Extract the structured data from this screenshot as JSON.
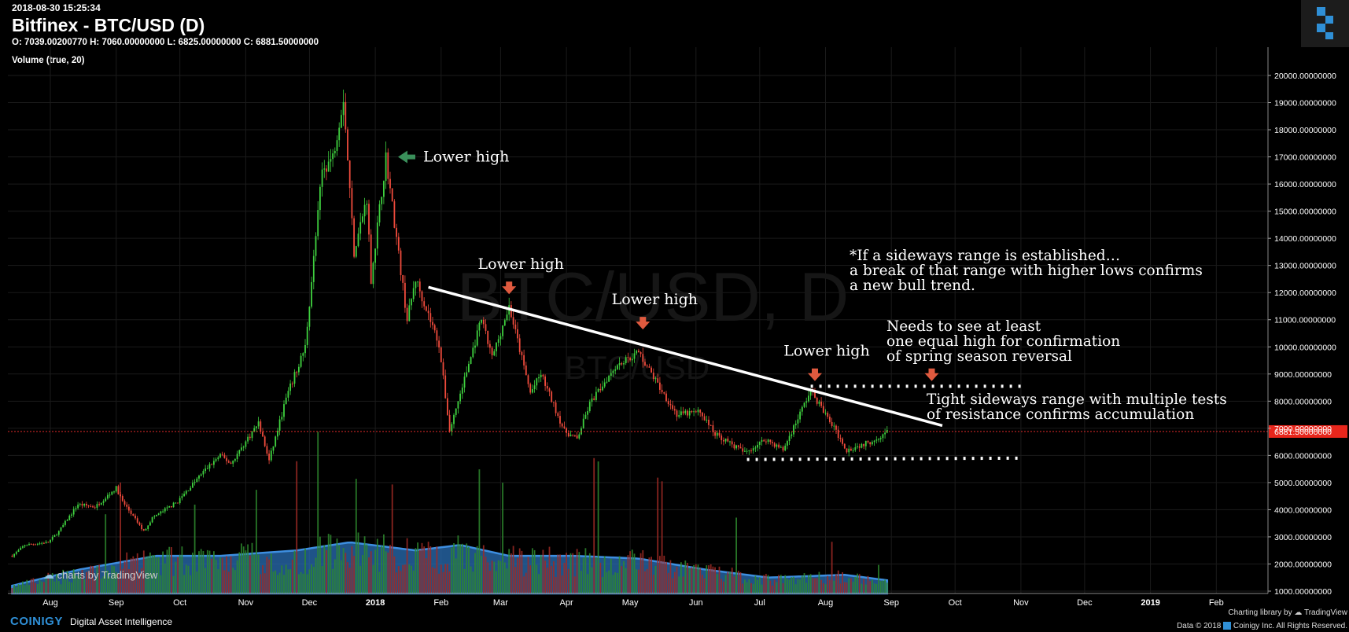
{
  "header": {
    "timestamp": "2018-08-30 15:25:34",
    "title": "Bitfinex - BTC/USD (D)",
    "ohlc": "O: 7039.00200770 H: 7060.00000000 L: 6825.00000000 C: 6881.50000000",
    "volume_label": "Volume (true, 20)"
  },
  "watermark": {
    "big": "BTC/USD, D",
    "small": "BTC/USD"
  },
  "footer": {
    "brand": "COINIGY",
    "tagline": "Digital Asset Intelligence",
    "charting": "Charting library by",
    "tv": "TradingView",
    "copyright": "Data © 2018",
    "copyright2": "Coinigy Inc. All Rights Reserved.",
    "charts_by": "charts by TradingView"
  },
  "colors": {
    "up": "#3fd13f",
    "down": "#ef4b3c",
    "volume_area": "#2a6fb5",
    "price_line": "#ff3030",
    "annotation_arrow": "#e05a3f",
    "green_arrow": "#3a8f5a"
  },
  "chart_data": {
    "type": "candlestick",
    "ylim": [
      1000,
      20000
    ],
    "current_price": 6881.5,
    "current_price_label": "6881.50000000",
    "ytick_values": [
      1000,
      2000,
      3000,
      4000,
      5000,
      6000,
      7000,
      8000,
      9000,
      10000,
      11000,
      12000,
      13000,
      14000,
      15000,
      16000,
      17000,
      18000,
      19000,
      20000
    ],
    "ytick_labels": [
      "1000.00000000",
      "2000.00000000",
      "3000.00000000",
      "4000.00000000",
      "5000.00000000",
      "6000.00000000",
      "7000.00000000",
      "8000.00000000",
      "9000.00000000",
      "10000.00000000",
      "11000.00000000",
      "12000.00000000",
      "13000.00000000",
      "14000.00000000",
      "15000.00000000",
      "16000.00000000",
      "17000.00000000",
      "18000.00000000",
      "19000.00000000",
      "20000.00000000"
    ],
    "xticks": [
      {
        "label": "Aug",
        "date": "2017-08-01",
        "bold": false
      },
      {
        "label": "Sep",
        "date": "2017-09-01",
        "bold": false
      },
      {
        "label": "Oct",
        "date": "2017-10-01",
        "bold": false
      },
      {
        "label": "Nov",
        "date": "2017-11-01",
        "bold": false
      },
      {
        "label": "Dec",
        "date": "2017-12-01",
        "bold": false
      },
      {
        "label": "2018",
        "date": "2018-01-01",
        "bold": true
      },
      {
        "label": "Feb",
        "date": "2018-02-01",
        "bold": false
      },
      {
        "label": "Mar",
        "date": "2018-03-01",
        "bold": false
      },
      {
        "label": "Apr",
        "date": "2018-04-01",
        "bold": false
      },
      {
        "label": "May",
        "date": "2018-05-01",
        "bold": false
      },
      {
        "label": "Jun",
        "date": "2018-06-01",
        "bold": false
      },
      {
        "label": "Jul",
        "date": "2018-07-01",
        "bold": false
      },
      {
        "label": "Aug",
        "date": "2018-08-01",
        "bold": false
      },
      {
        "label": "Sep",
        "date": "2018-09-01",
        "bold": false
      },
      {
        "label": "Oct",
        "date": "2018-10-01",
        "bold": false
      },
      {
        "label": "Nov",
        "date": "2018-11-01",
        "bold": false
      },
      {
        "label": "Dec",
        "date": "2018-12-01",
        "bold": false
      },
      {
        "label": "2019",
        "date": "2019-01-01",
        "bold": true
      },
      {
        "label": "Feb",
        "date": "2019-02-01",
        "bold": false
      }
    ],
    "price_path": [
      [
        "2017-07-14",
        2300
      ],
      [
        "2017-07-20",
        2700
      ],
      [
        "2017-07-31",
        2800
      ],
      [
        "2017-08-05",
        3200
      ],
      [
        "2017-08-14",
        4200
      ],
      [
        "2017-08-22",
        4100
      ],
      [
        "2017-09-01",
        4800
      ],
      [
        "2017-09-04",
        4300
      ],
      [
        "2017-09-14",
        3200
      ],
      [
        "2017-09-18",
        3700
      ],
      [
        "2017-09-30",
        4300
      ],
      [
        "2017-10-12",
        5400
      ],
      [
        "2017-10-20",
        6000
      ],
      [
        "2017-10-25",
        5700
      ],
      [
        "2017-11-07",
        7200
      ],
      [
        "2017-11-12",
        5800
      ],
      [
        "2017-11-20",
        8100
      ],
      [
        "2017-11-29",
        10000
      ],
      [
        "2017-12-07",
        16500
      ],
      [
        "2017-12-12",
        17000
      ],
      [
        "2017-12-17",
        19200
      ],
      [
        "2017-12-22",
        13500
      ],
      [
        "2017-12-28",
        15500
      ],
      [
        "2017-12-30",
        12500
      ],
      [
        "2018-01-06",
        17000
      ],
      [
        "2018-01-16",
        11000
      ],
      [
        "2018-01-20",
        12500
      ],
      [
        "2018-01-31",
        10100
      ],
      [
        "2018-02-05",
        6900
      ],
      [
        "2018-02-09",
        8000
      ],
      [
        "2018-02-20",
        11000
      ],
      [
        "2018-02-25",
        9600
      ],
      [
        "2018-03-05",
        11500
      ],
      [
        "2018-03-15",
        8300
      ],
      [
        "2018-03-20",
        9000
      ],
      [
        "2018-03-31",
        6900
      ],
      [
        "2018-04-06",
        6600
      ],
      [
        "2018-04-12",
        7900
      ],
      [
        "2018-04-24",
        9300
      ],
      [
        "2018-05-05",
        9800
      ],
      [
        "2018-05-15",
        8500
      ],
      [
        "2018-05-23",
        7500
      ],
      [
        "2018-06-03",
        7600
      ],
      [
        "2018-06-10",
        6800
      ],
      [
        "2018-06-24",
        6100
      ],
      [
        "2018-07-04",
        6600
      ],
      [
        "2018-07-12",
        6200
      ],
      [
        "2018-07-25",
        8400
      ],
      [
        "2018-08-05",
        7000
      ],
      [
        "2018-08-11",
        6200
      ],
      [
        "2018-08-22",
        6500
      ],
      [
        "2018-08-30",
        6881
      ]
    ],
    "volume_envelope": [
      [
        "2017-07-14",
        1200
      ],
      [
        "2017-08-15",
        1800
      ],
      [
        "2017-09-20",
        2300
      ],
      [
        "2017-10-20",
        2300
      ],
      [
        "2017-11-25",
        2500
      ],
      [
        "2017-12-20",
        2800
      ],
      [
        "2018-01-20",
        2500
      ],
      [
        "2018-02-10",
        2700
      ],
      [
        "2018-03-05",
        2300
      ],
      [
        "2018-04-05",
        2300
      ],
      [
        "2018-05-05",
        2200
      ],
      [
        "2018-06-05",
        1800
      ],
      [
        "2018-07-05",
        1500
      ],
      [
        "2018-08-10",
        1600
      ],
      [
        "2018-08-30",
        1400
      ]
    ],
    "annotations": [
      {
        "id": "lower-high-1",
        "text": "Lower high",
        "arrow": "left-green",
        "date": "2018-01-08",
        "price": 17000
      },
      {
        "id": "lower-high-2",
        "text": "Lower high",
        "arrow": "down-red",
        "date": "2018-03-05",
        "price": 12000
      },
      {
        "id": "lower-high-3",
        "text": "Lower high",
        "arrow": "down-red",
        "date": "2018-05-07",
        "price": 10700
      },
      {
        "id": "lower-high-4",
        "text": "Lower high",
        "arrow": "down-red",
        "date": "2018-07-27",
        "price": 8800
      },
      {
        "id": "equal-high",
        "text": "",
        "arrow": "down-red",
        "date": "2018-09-20",
        "price": 8800
      }
    ],
    "trendline": {
      "start": [
        "2018-01-26",
        12200
      ],
      "end": [
        "2018-09-25",
        7100
      ]
    },
    "resistance": {
      "start": [
        "2018-07-25",
        8550
      ],
      "end": [
        "2018-11-01",
        8550
      ]
    },
    "support": {
      "start": [
        "2018-06-25",
        5850
      ],
      "end": [
        "2018-11-01",
        5900
      ]
    },
    "notes": {
      "sideways": [
        "*If a sideways range is established…",
        "a break of that range with higher lows confirms",
        "a new bull trend."
      ],
      "needs": [
        "Needs to see at least",
        "one equal high for confirmation",
        "of spring season reversal"
      ],
      "tight": [
        "Tight sideways range with multiple tests",
        "of resistance confirms accumulation"
      ]
    }
  }
}
